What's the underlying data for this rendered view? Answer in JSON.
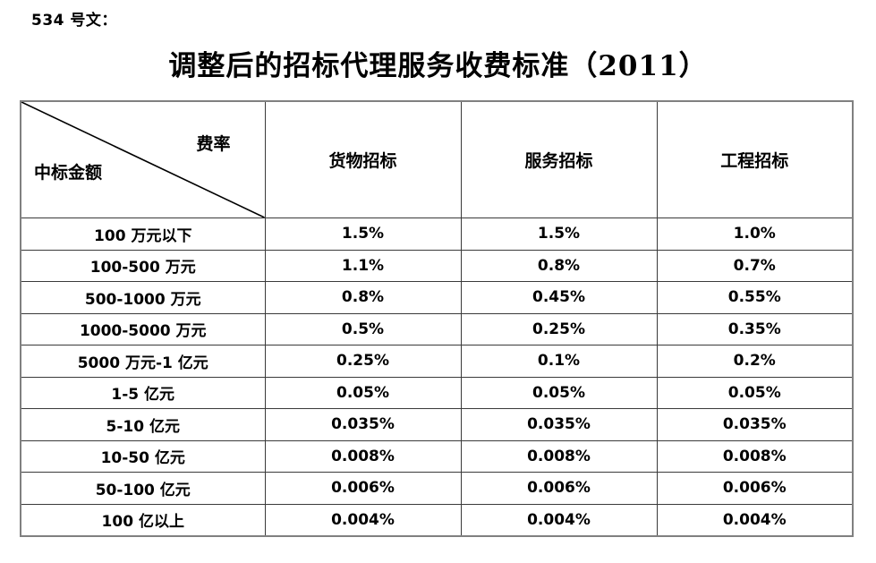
{
  "doc_label": "534 号文：",
  "title": "调整后的招标代理服务收费标准（2011）",
  "table": {
    "corner": {
      "top_right_label": "费率",
      "bottom_left_label": "中标金额"
    },
    "columns": [
      "货物招标",
      "服务招标",
      "工程招标"
    ],
    "rows": [
      [
        "100 万元以下",
        "1.5%",
        "1.5%",
        "1.0%"
      ],
      [
        "100-500 万元",
        "1.1%",
        "0.8%",
        "0.7%"
      ],
      [
        "500-1000 万元",
        "0.8%",
        "0.45%",
        "0.55%"
      ],
      [
        "1000-5000 万元",
        "0.5%",
        "0.25%",
        "0.35%"
      ],
      [
        "5000 万元-1 亿元",
        "0.25%",
        "0.1%",
        "0.2%"
      ],
      [
        "1-5 亿元",
        "0.05%",
        "0.05%",
        "0.05%"
      ],
      [
        "5-10 亿元",
        "0.035%",
        "0.035%",
        "0.035%"
      ],
      [
        "10-50 亿元",
        "0.008%",
        "0.008%",
        "0.008%"
      ],
      [
        "50-100 亿元",
        "0.006%",
        "0.006%",
        "0.006%"
      ],
      [
        "100 亿以上",
        "0.004%",
        "0.004%",
        "0.004%"
      ]
    ]
  },
  "colors": {
    "text": "#000000",
    "border_inner": "#3a3a3a",
    "border_outer": "#808080",
    "background": "#ffffff"
  }
}
